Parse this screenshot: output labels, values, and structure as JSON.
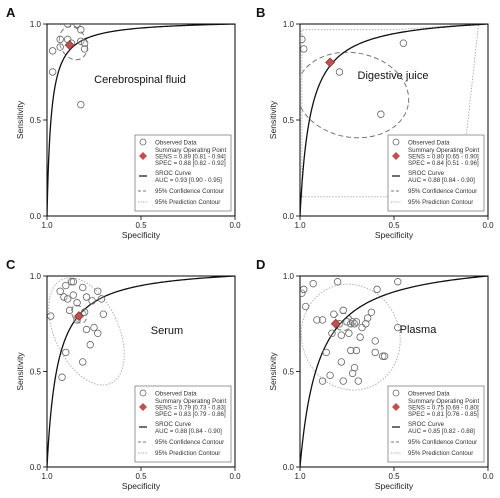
{
  "colors": {
    "curve": "#111111",
    "point_fill": "#c0504d",
    "observed_stroke": "#666666",
    "confidence": "#777777",
    "prediction": "#aaaaaa"
  },
  "chart_data": [
    {
      "type": "scatter",
      "panel_label": "A",
      "title": "Cerebrospinal fluid",
      "xlabel": "Specificity",
      "ylabel": "Sensitivity",
      "xlim": [
        1.0,
        0.0
      ],
      "ylim": [
        0.0,
        1.0
      ],
      "xticks": [
        "1.0",
        "0.5",
        "0.0"
      ],
      "yticks": [
        "0.0",
        "0.5",
        "1.0"
      ],
      "observed": [
        [
          0.97,
          0.86
        ],
        [
          0.97,
          0.75
        ],
        [
          0.93,
          0.92
        ],
        [
          0.93,
          0.88
        ],
        [
          0.89,
          0.92
        ],
        [
          0.89,
          1.0
        ],
        [
          0.84,
          1.0
        ],
        [
          0.82,
          0.97
        ],
        [
          0.82,
          0.91
        ],
        [
          0.8,
          0.9
        ],
        [
          0.8,
          0.87
        ],
        [
          0.82,
          0.58
        ],
        [
          0.87,
          0.9
        ]
      ],
      "summary_point": [
        0.88,
        0.89
      ],
      "auc": 0.93,
      "confidence_contour": {
        "cx": 0.86,
        "cy": 0.9,
        "rx": 0.07,
        "ry": 0.09,
        "angle": -25
      },
      "prediction_contour": null,
      "legend": {
        "observed": "Observed Data",
        "summary": "Summary Operating Point",
        "sens": "SENS = 0.89 [0.81 - 0.94]",
        "spec": "SPEC = 0.88 [0.82 - 0.92]",
        "sroc": "SROC Curve",
        "auc_text": "AUC = 0.93 [0.90 - 0.95]",
        "conf": "95% Confidence Contour",
        "pred": "95% Prediction Contour"
      }
    },
    {
      "type": "scatter",
      "panel_label": "B",
      "title": "Digestive juice",
      "xlabel": "Specificity",
      "ylabel": "Sensitivity",
      "xlim": [
        1.0,
        0.0
      ],
      "ylim": [
        0.0,
        1.0
      ],
      "xticks": [
        "1.0",
        "0.5",
        "0.0"
      ],
      "yticks": [
        "0.0",
        "0.5",
        "1.0"
      ],
      "observed": [
        [
          0.99,
          0.92
        ],
        [
          0.98,
          0.87
        ],
        [
          0.79,
          0.75
        ],
        [
          0.45,
          0.9
        ],
        [
          0.57,
          0.53
        ]
      ],
      "summary_point": [
        0.84,
        0.8
      ],
      "auc": 0.88,
      "confidence_contour": {
        "cx": 0.72,
        "cy": 0.63,
        "rx": 0.3,
        "ry": 0.22,
        "angle": 10
      },
      "prediction_contour": {
        "path": [
          [
            0.99,
            0.1
          ],
          [
            0.99,
            0.97
          ],
          [
            0.5,
            0.97
          ],
          [
            0.05,
            1.0
          ],
          [
            0.15,
            0.11
          ],
          [
            0.5,
            0.1
          ]
        ]
      },
      "legend": {
        "observed": "Observed Data",
        "summary": "Summary Operating Point",
        "sens": "SENS = 0.80 [0.65 - 0.90]",
        "spec": "SPEC = 0.84 [0.51 - 0.96]",
        "sroc": "SROC Curve",
        "auc_text": "AUC = 0.88 [0.84 - 0.90]",
        "conf": "95% Confidence Contour",
        "pred": "95% Prediction Contour"
      }
    },
    {
      "type": "scatter",
      "panel_label": "C",
      "title": "Serum",
      "xlabel": "Specificity",
      "ylabel": "Sensitivity",
      "xlim": [
        1.0,
        0.0
      ],
      "ylim": [
        0.0,
        1.0
      ],
      "xticks": [
        "1.0",
        "0.5",
        "0.0"
      ],
      "yticks": [
        "0.0",
        "0.5",
        "1.0"
      ],
      "observed": [
        [
          0.98,
          0.79
        ],
        [
          0.93,
          0.92
        ],
        [
          0.91,
          0.89
        ],
        [
          0.9,
          0.95
        ],
        [
          0.89,
          0.88
        ],
        [
          0.88,
          0.82
        ],
        [
          0.87,
          0.97
        ],
        [
          0.86,
          0.97
        ],
        [
          0.86,
          0.9
        ],
        [
          0.84,
          0.86
        ],
        [
          0.84,
          0.77
        ],
        [
          0.81,
          0.94
        ],
        [
          0.79,
          0.89
        ],
        [
          0.8,
          0.81
        ],
        [
          0.79,
          0.72
        ],
        [
          0.76,
          0.87
        ],
        [
          0.73,
          0.92
        ],
        [
          0.75,
          0.73
        ],
        [
          0.73,
          0.7
        ],
        [
          0.77,
          0.64
        ],
        [
          0.81,
          0.55
        ],
        [
          0.92,
          0.47
        ],
        [
          0.9,
          0.6
        ],
        [
          0.7,
          0.8
        ],
        [
          0.71,
          0.88
        ]
      ],
      "summary_point": [
        0.83,
        0.79
      ],
      "auc": 0.88,
      "confidence_contour": {
        "cx": 0.83,
        "cy": 0.8,
        "rx": 0.035,
        "ry": 0.05,
        "angle": -30
      },
      "prediction_contour": {
        "cx": 0.79,
        "cy": 0.71,
        "rx": 0.17,
        "ry": 0.3,
        "angle": -25
      },
      "legend": {
        "observed": "Observed Data",
        "summary": "Summary Operating Point",
        "sens": "SENS = 0.79 [0.73 - 0.83]",
        "spec": "SPEC = 0.83 [0.79 - 0.86]",
        "sroc": "SROC Curve",
        "auc_text": "AUC = 0.88 [0.84 - 0.90]",
        "conf": "95% Confidence Contour",
        "pred": "95% Prediction Contour"
      }
    },
    {
      "type": "scatter",
      "panel_label": "D",
      "title": "Plasma",
      "xlabel": "Specificity",
      "ylabel": "Sensitivity",
      "xlim": [
        1.0,
        0.0
      ],
      "ylim": [
        0.0,
        1.0
      ],
      "xticks": [
        "1.0",
        "0.5",
        "0.0"
      ],
      "yticks": [
        "0.0",
        "0.5",
        "1.0"
      ],
      "observed": [
        [
          0.99,
          0.91
        ],
        [
          0.97,
          0.84
        ],
        [
          0.98,
          0.93
        ],
        [
          0.93,
          0.96
        ],
        [
          0.91,
          0.77
        ],
        [
          0.88,
          0.77
        ],
        [
          0.88,
          0.45
        ],
        [
          0.84,
          0.48
        ],
        [
          0.83,
          0.7
        ],
        [
          0.82,
          0.8
        ],
        [
          0.79,
          0.75
        ],
        [
          0.78,
          0.69
        ],
        [
          0.78,
          0.55
        ],
        [
          0.77,
          0.45
        ],
        [
          0.77,
          0.82
        ],
        [
          0.75,
          0.76
        ],
        [
          0.74,
          0.7
        ],
        [
          0.73,
          0.61
        ],
        [
          0.73,
          0.75
        ],
        [
          0.72,
          0.76
        ],
        [
          0.71,
          0.75
        ],
        [
          0.7,
          0.76
        ],
        [
          0.7,
          0.61
        ],
        [
          0.71,
          0.52
        ],
        [
          0.69,
          0.45
        ],
        [
          0.68,
          0.68
        ],
        [
          0.67,
          0.73
        ],
        [
          0.65,
          0.75
        ],
        [
          0.64,
          0.78
        ],
        [
          0.62,
          0.81
        ],
        [
          0.6,
          0.66
        ],
        [
          0.6,
          0.6
        ],
        [
          0.59,
          0.93
        ],
        [
          0.56,
          0.58
        ],
        [
          0.55,
          0.58
        ],
        [
          0.48,
          0.73
        ],
        [
          0.48,
          0.97
        ],
        [
          0.72,
          0.49
        ],
        [
          0.86,
          0.6
        ],
        [
          0.8,
          0.97
        ]
      ],
      "summary_point": [
        0.81,
        0.75
      ],
      "auc": 0.85,
      "confidence_contour": {
        "cx": 0.77,
        "cy": 0.76,
        "rx": 0.05,
        "ry": 0.045,
        "angle": 0
      },
      "prediction_contour": {
        "cx": 0.73,
        "cy": 0.68,
        "rx": 0.26,
        "ry": 0.28,
        "angle": -20
      },
      "legend": {
        "observed": "Observed Data",
        "summary": "Summary Operating Point",
        "sens": "SENS = 0.75 [0.69 - 0.80]",
        "spec": "SPEC = 0.81 [0.76 - 0.85]",
        "sroc": "SROC Curve",
        "auc_text": "AUC = 0.85 [0.82 - 0.88]",
        "conf": "95% Confidence Contour",
        "pred": "95% Prediction Contour"
      }
    }
  ]
}
